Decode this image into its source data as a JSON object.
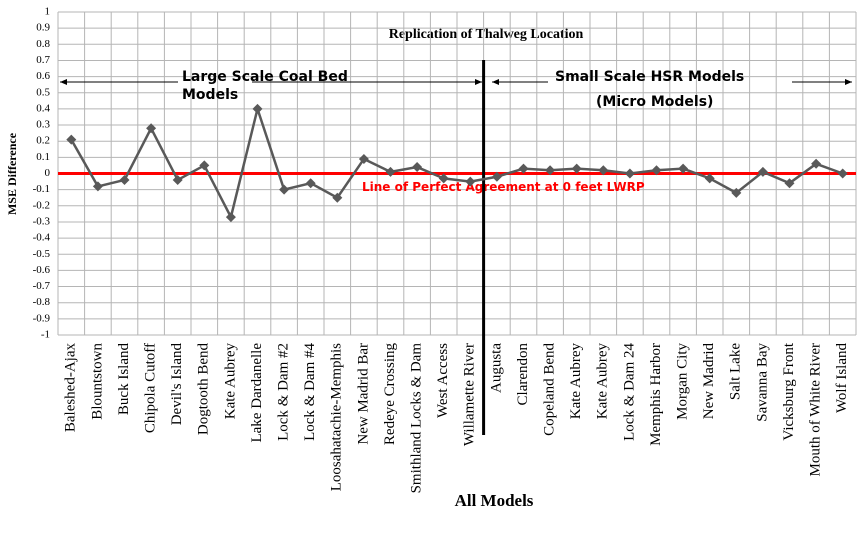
{
  "chart_data": {
    "type": "line",
    "title": "Replication of Thalweg Location",
    "x_label": "All Models",
    "y_label": "MSE Difference",
    "categories": [
      "Baleshed-Ajax",
      "Blountstown",
      "Buck Island",
      "Chipola Cutoff",
      "Devil's Island",
      "Dogtooth Bend",
      "Kate Aubrey",
      "Lake Dardanelle",
      "Lock & Dam #2",
      "Lock & Dam #4",
      "Loosahatachie-Memphis",
      "New Madrid Bar",
      "Redeye Crossing",
      "Smithland Locks & Dam",
      "West Access",
      "Willamette River",
      "Augusta",
      "Clarendon",
      "Copeland Bend",
      "Kate Aubrey",
      "Kate Aubrey",
      "Lock & Dam 24",
      "Memphis Harbor",
      "Morgan City",
      "New Madrid",
      "Salt Lake",
      "Savanna Bay",
      "Vicksburg Front",
      "Mouth of White River",
      "Wolf Island"
    ],
    "series": [
      {
        "name": "MSE Difference",
        "color": "#595959",
        "values": [
          0.21,
          -0.08,
          -0.04,
          0.28,
          -0.04,
          0.05,
          -0.27,
          0.4,
          -0.1,
          -0.06,
          -0.15,
          0.09,
          0.01,
          0.04,
          -0.03,
          -0.05,
          -0.02,
          0.03,
          0.02,
          0.03,
          0.02,
          0.0,
          0.02,
          0.03,
          -0.03,
          -0.12,
          0.01,
          -0.06,
          0.06,
          0.0
        ]
      }
    ],
    "ylim": [
      -1,
      1
    ],
    "yticks": [
      1,
      0.9,
      0.8,
      0.7,
      0.6,
      0.5,
      0.4,
      0.3,
      0.2,
      0.1,
      0,
      -0.1,
      -0.2,
      -0.3,
      -0.4,
      -0.5,
      -0.6,
      -0.7,
      -0.8,
      -0.9,
      -1
    ],
    "grid": true,
    "reference_line": {
      "value": 0,
      "color": "#ff0000",
      "label": "Line of Perfect Agreement at 0 feet LWRP"
    },
    "annotations": [
      "Large Scale Coal Bed",
      "Models",
      "Small Scale HSR Models",
      "(Micro Models)"
    ]
  }
}
